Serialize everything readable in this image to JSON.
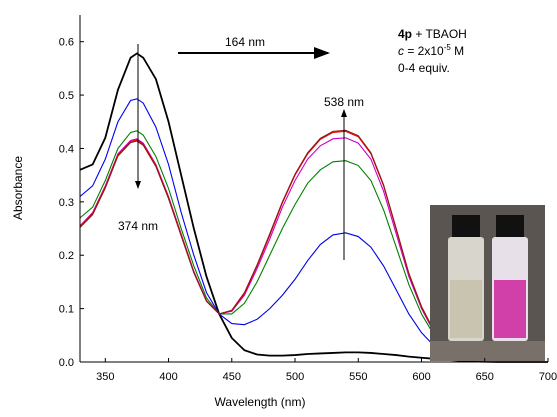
{
  "chart_data": {
    "type": "line",
    "xlabel": "Wavelength (nm)",
    "ylabel": "Absorbance",
    "xlim": [
      330,
      700
    ],
    "ylim": [
      0,
      0.65
    ],
    "xticks": [
      350,
      400,
      450,
      500,
      550,
      600,
      650,
      700
    ],
    "yticks": [
      {
        "value": 0,
        "label": "0.0"
      },
      0.1,
      0.2,
      0.3,
      0.4,
      0.5,
      0.6
    ],
    "x": [
      330,
      340,
      350,
      360,
      370,
      375,
      380,
      390,
      400,
      410,
      420,
      430,
      440,
      450,
      460,
      470,
      480,
      490,
      500,
      510,
      520,
      530,
      540,
      550,
      560,
      570,
      580,
      590,
      600,
      610,
      620,
      640,
      660,
      700
    ],
    "series": [
      {
        "color": "#000000",
        "values": [
          0.36,
          0.37,
          0.42,
          0.51,
          0.57,
          0.578,
          0.57,
          0.53,
          0.45,
          0.35,
          0.25,
          0.16,
          0.09,
          0.045,
          0.022,
          0.014,
          0.012,
          0.012,
          0.013,
          0.015,
          0.016,
          0.017,
          0.018,
          0.018,
          0.017,
          0.015,
          0.013,
          0.01,
          0.008,
          0.006,
          0.004,
          0.001,
          0,
          0
        ]
      },
      {
        "color": "#0000ee",
        "values": [
          0.31,
          0.33,
          0.38,
          0.45,
          0.49,
          0.493,
          0.485,
          0.44,
          0.37,
          0.28,
          0.2,
          0.13,
          0.09,
          0.072,
          0.07,
          0.08,
          0.1,
          0.125,
          0.155,
          0.19,
          0.22,
          0.238,
          0.242,
          0.235,
          0.215,
          0.18,
          0.135,
          0.09,
          0.055,
          0.03,
          0.015,
          0.003,
          0,
          0
        ]
      },
      {
        "color": "#008000",
        "values": [
          0.27,
          0.29,
          0.34,
          0.4,
          0.43,
          0.433,
          0.425,
          0.385,
          0.325,
          0.25,
          0.18,
          0.12,
          0.09,
          0.09,
          0.11,
          0.15,
          0.2,
          0.25,
          0.295,
          0.335,
          0.36,
          0.375,
          0.377,
          0.368,
          0.34,
          0.285,
          0.215,
          0.145,
          0.09,
          0.05,
          0.025,
          0.005,
          0,
          0
        ]
      },
      {
        "color": "#cc00cc",
        "values": [
          0.255,
          0.28,
          0.33,
          0.39,
          0.415,
          0.418,
          0.41,
          0.37,
          0.31,
          0.24,
          0.17,
          0.115,
          0.09,
          0.095,
          0.125,
          0.175,
          0.23,
          0.29,
          0.34,
          0.38,
          0.405,
          0.418,
          0.42,
          0.41,
          0.38,
          0.32,
          0.24,
          0.16,
          0.1,
          0.055,
          0.027,
          0.005,
          0,
          0
        ]
      },
      {
        "color": "#ee0000",
        "values": [
          0.255,
          0.278,
          0.328,
          0.388,
          0.413,
          0.416,
          0.408,
          0.368,
          0.308,
          0.238,
          0.168,
          0.114,
          0.09,
          0.096,
          0.128,
          0.18,
          0.237,
          0.298,
          0.35,
          0.39,
          0.417,
          0.43,
          0.432,
          0.422,
          0.39,
          0.33,
          0.248,
          0.165,
          0.103,
          0.057,
          0.028,
          0.005,
          0,
          0
        ]
      },
      {
        "color": "#8b1a1a",
        "values": [
          0.252,
          0.276,
          0.326,
          0.386,
          0.411,
          0.414,
          0.406,
          0.366,
          0.306,
          0.236,
          0.167,
          0.114,
          0.09,
          0.097,
          0.13,
          0.182,
          0.24,
          0.3,
          0.352,
          0.392,
          0.419,
          0.432,
          0.434,
          0.424,
          0.392,
          0.332,
          0.25,
          0.166,
          0.104,
          0.058,
          0.028,
          0.005,
          0,
          0
        ]
      }
    ],
    "annotations": [
      "164 nm",
      "374 nm",
      "538 nm"
    ],
    "legend_lines": [
      [
        "4p",
        " + TBAOH"
      ],
      [
        "c",
        " = 2x10",
        "-5",
        " M"
      ],
      [
        "0-4 equiv."
      ]
    ]
  }
}
